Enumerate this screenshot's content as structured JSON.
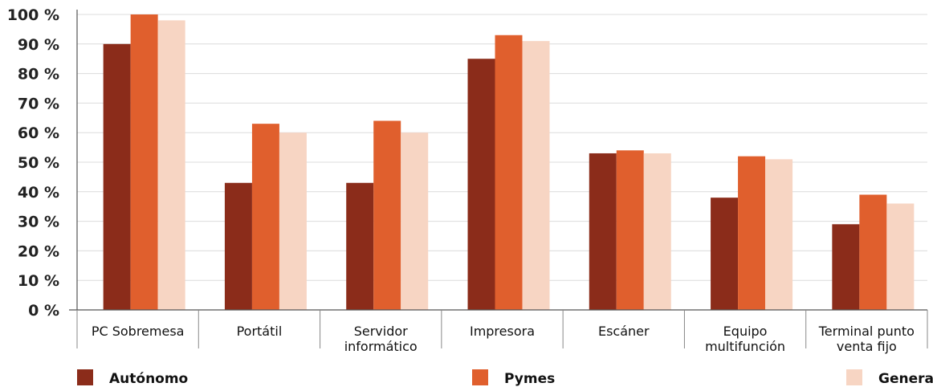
{
  "chart_data": {
    "type": "bar",
    "categories": [
      [
        "PC Sobremesa"
      ],
      [
        "Portátil"
      ],
      [
        "Servidor",
        "informático"
      ],
      [
        "Impresora"
      ],
      [
        "Escáner"
      ],
      [
        "Equipo",
        "multifunción"
      ],
      [
        "Terminal punto",
        "venta fijo"
      ]
    ],
    "series": [
      {
        "name": "Autónomo",
        "color": "#8b2c1a",
        "values": [
          90,
          43,
          43,
          85,
          53,
          38,
          29
        ]
      },
      {
        "name": "Pymes",
        "color": "#e05f2d",
        "values": [
          100,
          63,
          64,
          93,
          54,
          52,
          39
        ]
      },
      {
        "name": "General",
        "color": "#f7d5c3",
        "values": [
          98,
          60,
          60,
          91,
          53,
          51,
          36
        ]
      }
    ],
    "y_ticks": [
      "0 %",
      "10 %",
      "20 %",
      "30 %",
      "40 %",
      "50 %",
      "60 %",
      "70 %",
      "80 %",
      "90 %",
      "100 %"
    ],
    "ylim": [
      0,
      100
    ],
    "grid": true,
    "legend_position": "bottom",
    "title": "",
    "xlabel": "",
    "ylabel": ""
  }
}
